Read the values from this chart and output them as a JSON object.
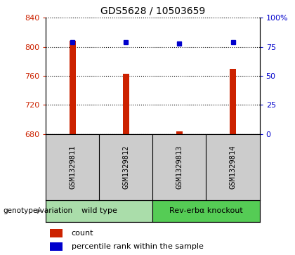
{
  "title": "GDS5628 / 10503659",
  "samples": [
    "GSM1329811",
    "GSM1329812",
    "GSM1329813",
    "GSM1329814"
  ],
  "counts": [
    808,
    763,
    683,
    770
  ],
  "percentiles": [
    79,
    79,
    78,
    79
  ],
  "ylim_left": [
    680,
    840
  ],
  "ylim_right": [
    0,
    100
  ],
  "yticks_left": [
    680,
    720,
    760,
    800,
    840
  ],
  "yticks_right": [
    0,
    25,
    50,
    75,
    100
  ],
  "yticklabels_right": [
    "0",
    "25",
    "50",
    "75",
    "100%"
  ],
  "bar_color": "#cc2200",
  "dot_color": "#0000cc",
  "grid_color": "#000000",
  "groups": [
    {
      "label": "wild type",
      "indices": [
        0,
        1
      ],
      "color": "#aaddaa"
    },
    {
      "label": "Rev-erbα knockout",
      "indices": [
        2,
        3
      ],
      "color": "#55cc55"
    }
  ],
  "group_label": "genotype/variation",
  "legend_items": [
    {
      "color": "#cc2200",
      "label": "count"
    },
    {
      "color": "#0000cc",
      "label": "percentile rank within the sample"
    }
  ],
  "bar_width": 0.12,
  "fig_width": 4.2,
  "fig_height": 3.63,
  "dpi": 100
}
